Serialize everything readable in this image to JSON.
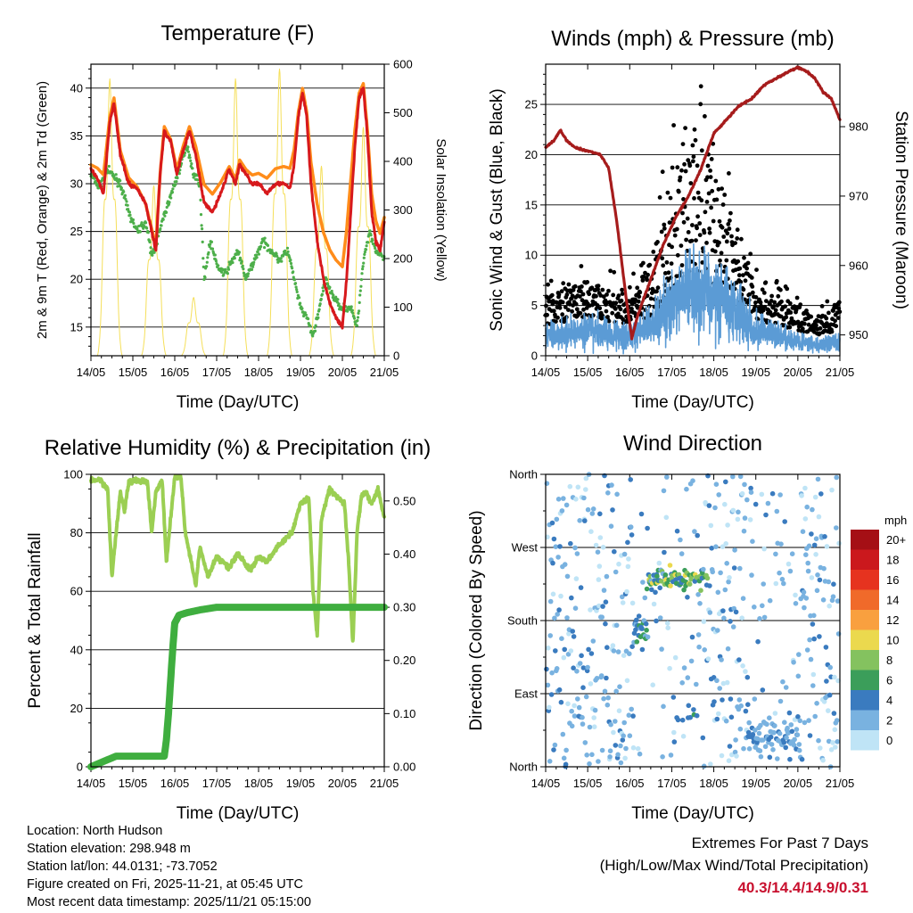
{
  "time_ticks": [
    "14/05",
    "15/05",
    "16/05",
    "17/05",
    "18/05",
    "19/05",
    "20/05",
    "21/05"
  ],
  "chart_data": [
    {
      "type": "line",
      "title": "Temperature (F)",
      "xlabel": "Time (Day/UTC)",
      "ylabel": "2m & 9m T (Red, Orange) & 2m Td (Green)",
      "ylabel_right": "Solar Insolation (Yellow)",
      "xlim": [
        0,
        7
      ],
      "ylim": [
        12,
        42.5
      ],
      "yticks": [
        15,
        20,
        25,
        30,
        35,
        40
      ],
      "ylim_right": [
        0,
        600
      ],
      "yticks_right": [
        0,
        100,
        200,
        300,
        400,
        500,
        600
      ],
      "series": [
        {
          "name": "2m T",
          "color": "#d7191c",
          "x": [
            0,
            0.15,
            0.3,
            0.45,
            0.55,
            0.7,
            0.9,
            1.1,
            1.3,
            1.45,
            1.55,
            1.65,
            1.75,
            1.9,
            2.05,
            2.2,
            2.35,
            2.5,
            2.7,
            2.9,
            3.1,
            3.3,
            3.45,
            3.55,
            3.7,
            3.85,
            4.0,
            4.2,
            4.4,
            4.6,
            4.75,
            4.85,
            4.95,
            5.05,
            5.15,
            5.25,
            5.4,
            5.55,
            5.7,
            5.85,
            6.0,
            6.1,
            6.2,
            6.3,
            6.4,
            6.5,
            6.6,
            6.7,
            6.8,
            6.9,
            7.0
          ],
          "y": [
            31.5,
            30.5,
            29,
            36.5,
            38.5,
            33,
            30,
            29.5,
            28,
            25,
            23,
            31,
            35.5,
            34.5,
            31,
            33.5,
            35.5,
            33,
            28,
            27,
            29,
            31.5,
            30,
            32,
            31,
            30,
            30,
            29,
            30,
            30,
            29.5,
            32,
            37,
            39.5,
            37,
            30,
            24,
            20,
            17.5,
            16,
            15,
            20,
            27,
            34,
            39,
            40,
            35,
            27,
            24,
            23,
            26
          ]
        },
        {
          "name": "9m T",
          "color": "#ff8c1a",
          "x": [
            0,
            0.45,
            0.55,
            0.7,
            1.55,
            1.75,
            2.05,
            2.35,
            3.45,
            3.55,
            3.7,
            4.95,
            5.05,
            5.15,
            6.4,
            6.5,
            6.6,
            7.0
          ],
          "y": [
            32,
            37,
            39,
            33.5,
            23.5,
            36,
            31.5,
            36,
            30.5,
            32.5,
            31.5,
            37.5,
            40,
            37.5,
            39.5,
            40.5,
            35.5,
            26.5
          ]
        },
        {
          "name": "2m Td",
          "color": "#4daf4a",
          "x": [
            0,
            0.2,
            0.35,
            0.5,
            0.7,
            0.9,
            1.1,
            1.3,
            1.45,
            1.55,
            1.7,
            1.85,
            2.0,
            2.15,
            2.3,
            2.45,
            2.6,
            2.7,
            2.85,
            3.0,
            3.2,
            3.5,
            3.7,
            3.9,
            4.1,
            4.3,
            4.5,
            4.7,
            4.85,
            5.0,
            5.15,
            5.3,
            5.45,
            5.6,
            5.8,
            6.0,
            6.2,
            6.35,
            6.5,
            6.65,
            6.8,
            7.0
          ],
          "y": [
            31,
            29.5,
            31.5,
            31,
            30,
            27,
            25,
            26,
            22.5,
            23.5,
            26,
            28,
            30,
            32,
            34,
            31,
            30,
            20,
            24,
            21.5,
            20.5,
            23,
            20,
            22,
            24,
            23,
            22,
            23,
            20,
            17,
            16,
            14,
            17,
            20,
            18,
            17,
            17,
            15,
            22,
            25,
            23,
            22
          ]
        }
      ],
      "solar": {
        "name": "Solar Insolation",
        "color": "#f5df5a",
        "peaks": [
          [
            0.45,
            570
          ],
          [
            1.5,
            350
          ],
          [
            2.45,
            120
          ],
          [
            3.45,
            570
          ],
          [
            4.5,
            590
          ],
          [
            5.5,
            390
          ],
          [
            6.5,
            470
          ]
        ]
      }
    },
    {
      "type": "scatter",
      "title": "Winds (mph) & Pressure (mb)",
      "xlabel": "Time (Day/UTC)",
      "ylabel": "Sonic Wind & Gust (Blue, Black)",
      "ylabel_right": "Station Pressure (Maroon)",
      "xlim": [
        0,
        7
      ],
      "ylim": [
        0,
        29
      ],
      "yticks": [
        0,
        5,
        10,
        15,
        20,
        25
      ],
      "ylim_right": [
        947,
        989
      ],
      "yticks_right": [
        950,
        960,
        970,
        980
      ],
      "wind_envelope": {
        "x": [
          0,
          1,
          2,
          2.5,
          3,
          3.5,
          4,
          4.5,
          5,
          5.5,
          6,
          6.5,
          7
        ],
        "y": [
          2,
          2.5,
          2,
          3,
          5,
          7,
          6,
          5,
          2.5,
          2,
          1.5,
          1,
          1.5
        ]
      },
      "gust_envelope": {
        "x": [
          0,
          1,
          2,
          2.5,
          3,
          3.5,
          4,
          4.5,
          5,
          5.5,
          6,
          6.5,
          7
        ],
        "y": [
          3,
          4,
          2.5,
          6,
          10,
          15,
          12,
          8,
          3,
          3,
          2.5,
          2,
          3
        ]
      },
      "pressure": {
        "name": "Station Pressure",
        "color": "#a61c1c",
        "x": [
          0,
          0.2,
          0.35,
          0.5,
          0.7,
          1.0,
          1.3,
          1.5,
          1.7,
          1.9,
          2.05,
          2.2,
          2.5,
          2.8,
          3.1,
          3.4,
          3.7,
          4.0,
          4.3,
          4.6,
          4.9,
          5.2,
          5.5,
          5.8,
          6.0,
          6.2,
          6.4,
          6.6,
          6.8,
          7.0
        ],
        "y": [
          977,
          978,
          979.5,
          978,
          977,
          976.5,
          976,
          974,
          966,
          956,
          949.5,
          953,
          958,
          963,
          967,
          970,
          974,
          979,
          981,
          983,
          984,
          986,
          987,
          988,
          988.5,
          988,
          987,
          985,
          984,
          981
        ]
      }
    },
    {
      "type": "line",
      "title": "Relative Humidity (%) & Precipitation (in)",
      "xlabel": "Time (Day/UTC)",
      "ylabel": "Percent & Total Rainfall",
      "xlim": [
        0,
        7
      ],
      "ylim": [
        0,
        100
      ],
      "yticks": [
        0,
        20,
        40,
        60,
        80,
        100
      ],
      "ylim_right": [
        0,
        0.55
      ],
      "yticks_right": [
        "0.00",
        "0.10",
        "0.20",
        "0.30",
        "0.40",
        "0.50"
      ],
      "series": [
        {
          "name": "Relative Humidity",
          "color": "#9bcf53",
          "x": [
            0,
            0.2,
            0.4,
            0.5,
            0.6,
            0.7,
            0.8,
            0.9,
            1.0,
            1.2,
            1.35,
            1.45,
            1.55,
            1.7,
            1.8,
            2.0,
            2.15,
            2.25,
            2.4,
            2.5,
            2.6,
            2.8,
            3.0,
            3.3,
            3.5,
            3.8,
            4.0,
            4.2,
            4.5,
            4.8,
            5.0,
            5.2,
            5.3,
            5.4,
            5.5,
            5.7,
            5.9,
            6.05,
            6.15,
            6.25,
            6.35,
            6.45,
            6.55,
            6.7,
            6.85,
            7.0
          ],
          "y": [
            98,
            98,
            95,
            65,
            80,
            94,
            88,
            97,
            98,
            98,
            97,
            80,
            94,
            98,
            70,
            99,
            99,
            80,
            70,
            62,
            75,
            65,
            72,
            68,
            73,
            67,
            72,
            70,
            76,
            80,
            90,
            92,
            60,
            45,
            85,
            95,
            92,
            90,
            70,
            42,
            80,
            92,
            94,
            90,
            95,
            85
          ]
        },
        {
          "name": "Total Rainfall",
          "color": "#3fae3f",
          "x": [
            0,
            0.3,
            0.6,
            1.0,
            1.5,
            1.75,
            1.8,
            1.85,
            1.9,
            1.95,
            2.0,
            2.1,
            2.3,
            2.6,
            3.0,
            4.0,
            5.0,
            6.0,
            7.0
          ],
          "y": [
            0,
            0.01,
            0.02,
            0.02,
            0.02,
            0.02,
            0.05,
            0.1,
            0.16,
            0.22,
            0.27,
            0.285,
            0.29,
            0.295,
            0.3,
            0.3,
            0.3,
            0.3,
            0.3
          ]
        }
      ]
    },
    {
      "type": "scatter",
      "title": "Wind Direction",
      "xlabel": "Time (Day/UTC)",
      "ylabel": "Direction (Colored By Speed)",
      "xlim": [
        0,
        7
      ],
      "ylim": [
        0,
        360
      ],
      "yticks": [
        "North",
        "East",
        "South",
        "West",
        "North"
      ],
      "colorbar": {
        "unit": "mph",
        "labels": [
          "20+",
          "18",
          "16",
          "14",
          "12",
          "10",
          "8",
          "6",
          "4",
          "2",
          "0"
        ],
        "colors": [
          "#a50f15",
          "#cb181d",
          "#e6331f",
          "#f06a2a",
          "#f9a03f",
          "#ebd94e",
          "#84c25f",
          "#3b9e5a",
          "#3a7bbf",
          "#79b2e0",
          "#bfe4f6"
        ]
      }
    }
  ],
  "info": {
    "location": "Location: North Hudson",
    "elevation": "Station elevation: 298.948 m",
    "latlon": "Station lat/lon: 44.0131; -73.7052",
    "created": "Figure created on Fri, 2025-11-21, at 05:45 UTC",
    "timestamp": "Most recent data timestamp: 2025/11/21 05:15:00"
  },
  "extremes": {
    "title": "Extremes For Past 7 Days",
    "subtitle": "(High/Low/Max Wind/Total Precipitation)",
    "values": "40.3/14.4/14.9/0.31"
  }
}
